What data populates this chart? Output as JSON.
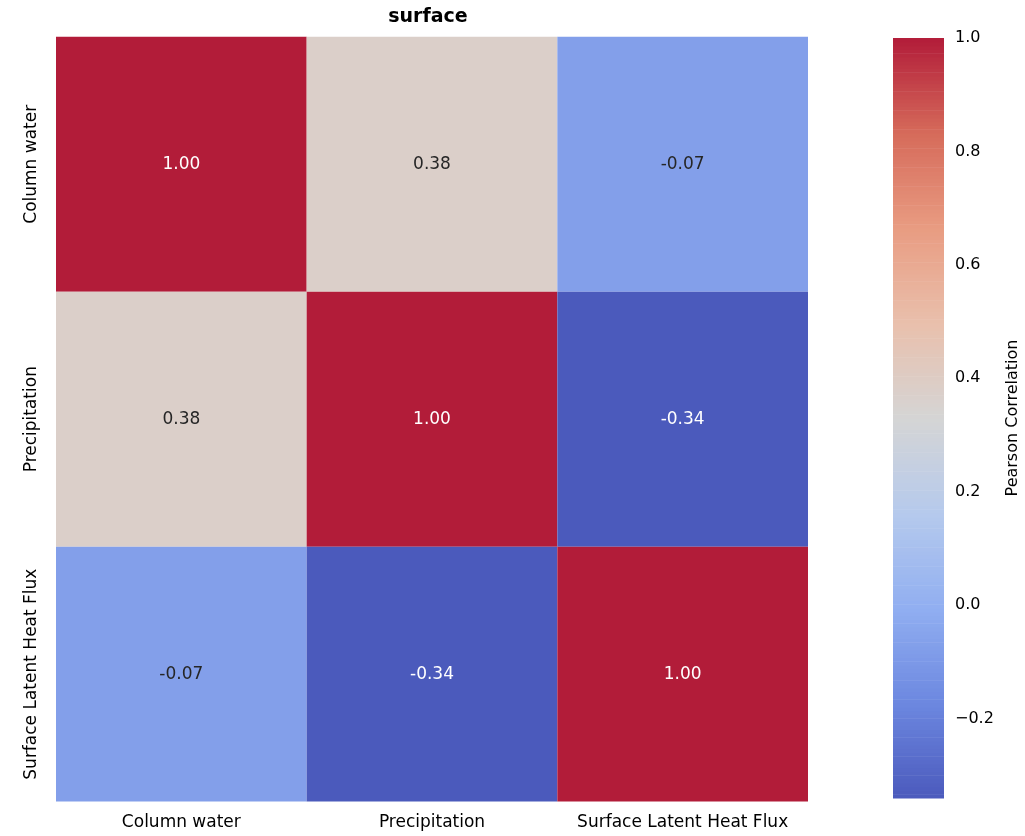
{
  "chart_data": {
    "type": "heatmap",
    "title": "surface",
    "categories": [
      "Column water",
      "Precipitation",
      "Surface Latent Heat Flux"
    ],
    "y_categories": [
      "Column water",
      "Precipitation",
      "Surface Latent Heat Flux"
    ],
    "cells": [
      [
        1.0,
        0.38,
        -0.07
      ],
      [
        0.38,
        1.0,
        -0.34
      ],
      [
        -0.07,
        -0.34,
        1.0
      ]
    ],
    "cell_labels": [
      [
        "1.00",
        "0.38",
        "-0.07"
      ],
      [
        "0.38",
        "1.00",
        "-0.34"
      ],
      [
        "-0.07",
        "-0.34",
        "1.00"
      ]
    ],
    "clim": [
      -0.34,
      1.0
    ],
    "cticks": [
      {
        "value": -0.2,
        "label": "−0.2"
      },
      {
        "value": 0,
        "label": "0.0"
      },
      {
        "value": 0.2,
        "label": "0.2"
      },
      {
        "value": 0.4,
        "label": "0.4"
      },
      {
        "value": 0.6,
        "label": "0.6"
      },
      {
        "value": 0.8,
        "label": "0.8"
      },
      {
        "value": 1.0,
        "label": "1.0"
      }
    ],
    "clabel": "Pearson Correlation"
  }
}
